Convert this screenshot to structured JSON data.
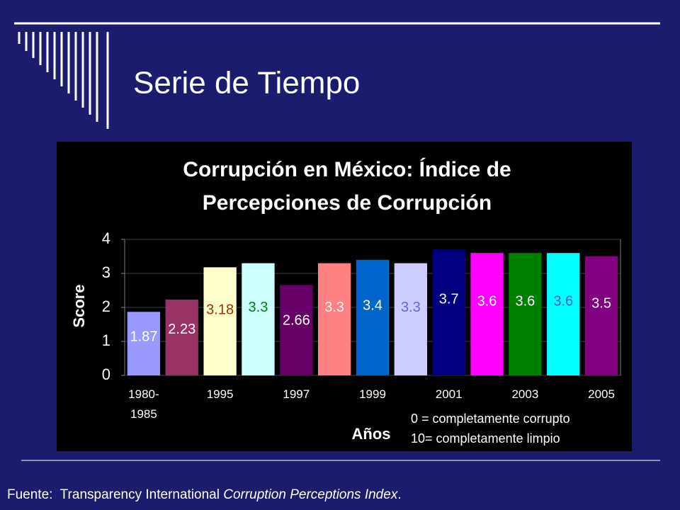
{
  "slide_title": "Serie de Tiempo",
  "chart_data": {
    "type": "bar",
    "title": [
      "Corrupción en México:  Índice de",
      "Percepciones de Corrupción"
    ],
    "y_label": "Score",
    "x_label": "Años",
    "categories": [
      "1980-\n1985",
      null,
      "1995",
      null,
      "1997",
      null,
      "1999",
      null,
      "2001",
      null,
      "2003",
      null,
      "2005"
    ],
    "values": [
      1.87,
      2.23,
      3.18,
      3.3,
      2.66,
      3.3,
      3.4,
      3.3,
      3.7,
      3.6,
      3.6,
      3.6,
      3.5
    ],
    "colors": [
      "#9999ff",
      "#993366",
      "#ffffcc",
      "#ccffff",
      "#660066",
      "#ff8080",
      "#0066cc",
      "#ccccff",
      "#000080",
      "#ff00ff",
      "#008000",
      "#00ffff",
      "#800080"
    ],
    "label_colors": [
      "#ffffff",
      "#ffffff",
      "#993300",
      "#008000",
      "#ffffff",
      "#ffffff",
      "#ffffff",
      "#6666cc",
      "#ffffff",
      "#ffffff",
      "#ffffff",
      "#3366cc",
      "#ffffff"
    ],
    "ylim": [
      0,
      4
    ],
    "yticks": [
      0,
      1,
      2,
      3,
      4
    ],
    "grid": true,
    "notes": [
      "0 = completamente corrupto",
      "10= completamente limpio"
    ]
  },
  "source": [
    "Fuente:  Transparency International ",
    "Corruption Perceptions Index",
    "."
  ]
}
